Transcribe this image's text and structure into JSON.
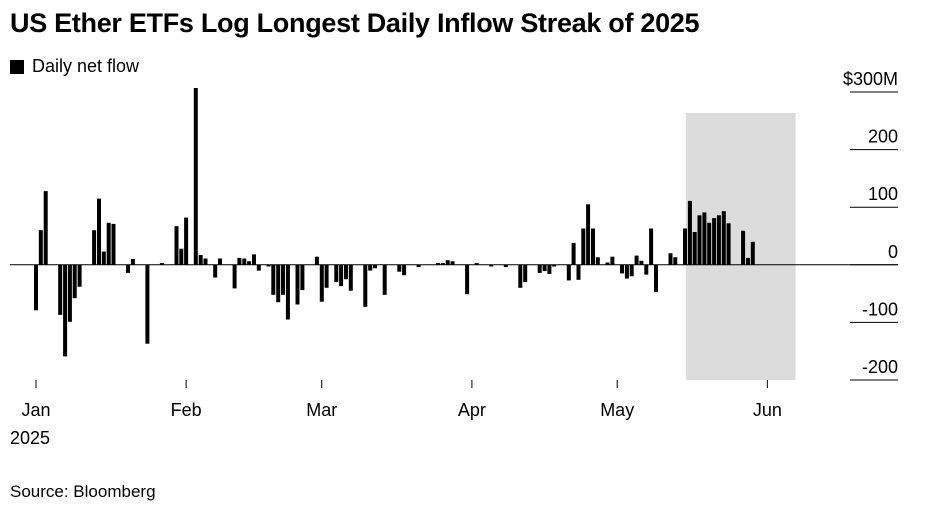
{
  "title": "US Ether ETFs Log Longest Daily Inflow Streak of 2025",
  "legend": {
    "label": "Daily net flow",
    "color": "#000000"
  },
  "source": "Source: Bloomberg",
  "chart_data": {
    "type": "bar",
    "title": "US Ether ETFs Log Longest Daily Inflow Streak of 2025",
    "xlabel": "",
    "ylabel": "",
    "unit": "M",
    "ylim": [
      -200,
      300
    ],
    "yticks": [
      {
        "value": 300,
        "label": "$300M"
      },
      {
        "value": 200,
        "label": "200"
      },
      {
        "value": 100,
        "label": "100"
      },
      {
        "value": 0,
        "label": "0"
      },
      {
        "value": -100,
        "label": "-100"
      },
      {
        "value": -200,
        "label": "-200"
      }
    ],
    "xticks": [
      {
        "date": "2025-01-01",
        "label": "Jan",
        "sublabel": "2025"
      },
      {
        "date": "2025-02-01",
        "label": "Feb"
      },
      {
        "date": "2025-03-01",
        "label": "Mar"
      },
      {
        "date": "2025-04-01",
        "label": "Apr"
      },
      {
        "date": "2025-05-01",
        "label": "May"
      },
      {
        "date": "2025-06-01",
        "label": "Jun"
      }
    ],
    "bar_color": "#000000",
    "highlight": {
      "start": "2025-05-16",
      "end": "2025-06-06",
      "color": "#dcdcdc"
    },
    "grid": false,
    "legend_position": "top-left",
    "series": [
      {
        "name": "Daily net flow",
        "points": [
          [
            "2025-01-01",
            -79
          ],
          [
            "2025-01-02",
            60
          ],
          [
            "2025-01-03",
            128
          ],
          [
            "2025-01-06",
            -87
          ],
          [
            "2025-01-07",
            -159
          ],
          [
            "2025-01-08",
            -99
          ],
          [
            "2025-01-09",
            -58
          ],
          [
            "2025-01-10",
            -38
          ],
          [
            "2025-01-13",
            60
          ],
          [
            "2025-01-14",
            115
          ],
          [
            "2025-01-15",
            23
          ],
          [
            "2025-01-16",
            73
          ],
          [
            "2025-01-17",
            71
          ],
          [
            "2025-01-20",
            -14
          ],
          [
            "2025-01-21",
            10
          ],
          [
            "2025-01-24",
            -137
          ],
          [
            "2025-01-27",
            3
          ],
          [
            "2025-01-30",
            67
          ],
          [
            "2025-01-31",
            28
          ],
          [
            "2025-02-01",
            82
          ],
          [
            "2025-02-03",
            307
          ],
          [
            "2025-02-04",
            17
          ],
          [
            "2025-02-05",
            11
          ],
          [
            "2025-02-07",
            -22
          ],
          [
            "2025-02-08",
            11
          ],
          [
            "2025-02-11",
            -41
          ],
          [
            "2025-02-12",
            12
          ],
          [
            "2025-02-13",
            11
          ],
          [
            "2025-02-14",
            6
          ],
          [
            "2025-02-15",
            18
          ],
          [
            "2025-02-16",
            -10
          ],
          [
            "2025-02-18",
            -3
          ],
          [
            "2025-02-19",
            -52
          ],
          [
            "2025-02-20",
            -65
          ],
          [
            "2025-02-21",
            -52
          ],
          [
            "2025-02-22",
            -95
          ],
          [
            "2025-02-24",
            -69
          ],
          [
            "2025-02-25",
            -44
          ],
          [
            "2025-02-28",
            14
          ],
          [
            "2025-03-01",
            -64
          ],
          [
            "2025-03-02",
            -40
          ],
          [
            "2025-03-04",
            -30
          ],
          [
            "2025-03-05",
            -37
          ],
          [
            "2025-03-06",
            -25
          ],
          [
            "2025-03-07",
            -45
          ],
          [
            "2025-03-10",
            -73
          ],
          [
            "2025-03-11",
            -10
          ],
          [
            "2025-03-12",
            -6
          ],
          [
            "2025-03-14",
            -52
          ],
          [
            "2025-03-17",
            -12
          ],
          [
            "2025-03-18",
            -18
          ],
          [
            "2025-03-21",
            -4
          ],
          [
            "2025-03-25",
            3
          ],
          [
            "2025-03-26",
            3
          ],
          [
            "2025-03-27",
            8
          ],
          [
            "2025-03-28",
            6
          ],
          [
            "2025-03-31",
            -51
          ],
          [
            "2025-04-02",
            3
          ],
          [
            "2025-04-05",
            -3
          ],
          [
            "2025-04-08",
            -4
          ],
          [
            "2025-04-11",
            -40
          ],
          [
            "2025-04-12",
            -30
          ],
          [
            "2025-04-15",
            -14
          ],
          [
            "2025-04-16",
            -11
          ],
          [
            "2025-04-17",
            -16
          ],
          [
            "2025-04-18",
            -3
          ],
          [
            "2025-04-21",
            -27
          ],
          [
            "2025-04-22",
            38
          ],
          [
            "2025-04-23",
            -26
          ],
          [
            "2025-04-24",
            63
          ],
          [
            "2025-04-25",
            105
          ],
          [
            "2025-04-26",
            63
          ],
          [
            "2025-04-27",
            13
          ],
          [
            "2025-04-29",
            4
          ],
          [
            "2025-04-30",
            14
          ],
          [
            "2025-05-02",
            -15
          ],
          [
            "2025-05-03",
            -24
          ],
          [
            "2025-05-04",
            -20
          ],
          [
            "2025-05-05",
            16
          ],
          [
            "2025-05-06",
            7
          ],
          [
            "2025-05-07",
            -17
          ],
          [
            "2025-05-08",
            63
          ],
          [
            "2025-05-09",
            -47
          ],
          [
            "2025-05-12",
            20
          ],
          [
            "2025-05-13",
            13
          ],
          [
            "2025-05-15",
            63
          ],
          [
            "2025-05-16",
            111
          ],
          [
            "2025-05-17",
            57
          ],
          [
            "2025-05-18",
            86
          ],
          [
            "2025-05-19",
            91
          ],
          [
            "2025-05-20",
            73
          ],
          [
            "2025-05-21",
            81
          ],
          [
            "2025-05-22",
            86
          ],
          [
            "2025-05-23",
            93
          ],
          [
            "2025-05-24",
            72
          ],
          [
            "2025-05-27",
            59
          ],
          [
            "2025-05-28",
            12
          ],
          [
            "2025-05-29",
            40
          ]
        ]
      }
    ]
  }
}
